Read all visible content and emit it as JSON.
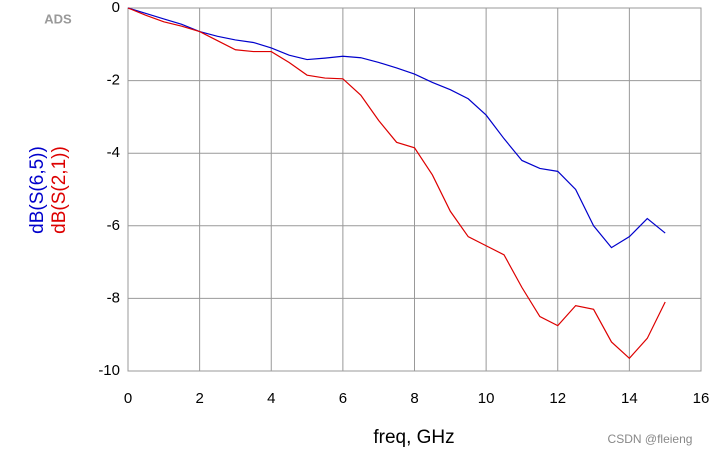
{
  "chart_data": {
    "type": "line",
    "logo": "ADS",
    "x_label": "freq, GHz",
    "watermark": "CSDN @fleieng",
    "x": [
      0,
      0.5,
      1,
      1.5,
      2,
      2.5,
      3,
      3.5,
      4,
      4.5,
      5,
      5.5,
      6,
      6.5,
      7,
      7.5,
      8,
      8.5,
      9,
      9.5,
      10,
      10.5,
      11,
      11.5,
      12,
      12.5,
      13,
      13.5,
      14,
      14.5,
      15
    ],
    "series": [
      {
        "name": "dB(S(6,5))",
        "color": "#0000cc",
        "values": [
          0,
          -0.15,
          -0.3,
          -0.45,
          -0.65,
          -0.78,
          -0.88,
          -0.95,
          -1.1,
          -1.3,
          -1.42,
          -1.38,
          -1.33,
          -1.37,
          -1.5,
          -1.65,
          -1.82,
          -2.05,
          -2.25,
          -2.5,
          -2.95,
          -3.6,
          -4.2,
          -4.42,
          -4.5,
          -5.0,
          -6.0,
          -6.6,
          -6.3,
          -5.8,
          -6.2
        ]
      },
      {
        "name": "dB(S(2,1))",
        "color": "#dd0000",
        "values": [
          0,
          -0.2,
          -0.38,
          -0.5,
          -0.65,
          -0.9,
          -1.15,
          -1.2,
          -1.2,
          -1.5,
          -1.85,
          -1.93,
          -1.95,
          -2.4,
          -3.1,
          -3.7,
          -3.85,
          -4.6,
          -5.6,
          -6.3,
          -6.55,
          -6.8,
          -7.7,
          -8.5,
          -8.75,
          -8.2,
          -8.3,
          -9.2,
          -9.65,
          -9.1,
          -8.1
        ]
      }
    ],
    "xlim": [
      0,
      16
    ],
    "xticks": [
      0,
      2,
      4,
      6,
      8,
      10,
      12,
      14,
      16
    ],
    "ylim": [
      -10,
      0
    ],
    "yticks": [
      0,
      -2,
      -4,
      -6,
      -8,
      -10
    ],
    "grid": true
  }
}
